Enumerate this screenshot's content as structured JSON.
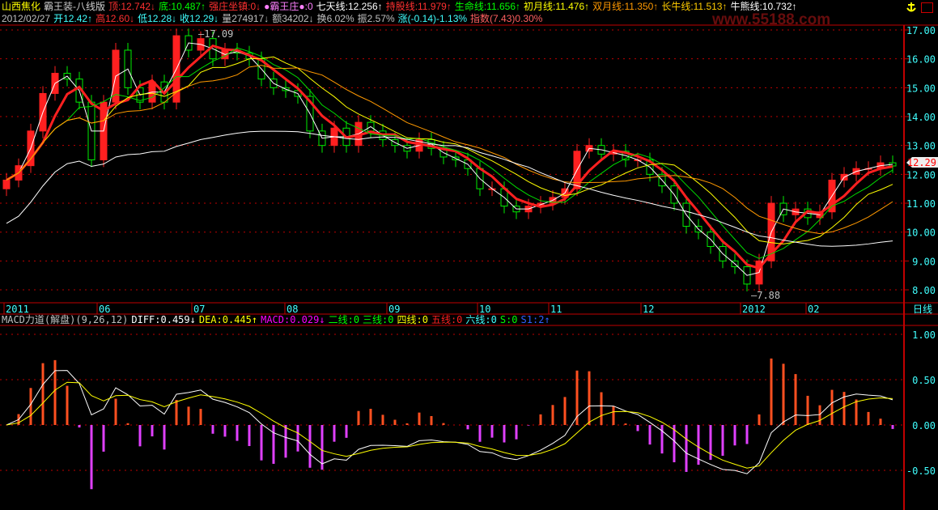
{
  "header": {
    "line1": [
      {
        "t": "山西焦化",
        "c": "#ffff00"
      },
      {
        "t": "霸王装-八线版",
        "c": "#d0d0d0"
      },
      {
        "t": "顶:12.742↓",
        "c": "#ff3030"
      },
      {
        "t": "底:10.487↑",
        "c": "#00ff00"
      },
      {
        "t": "强庄坐镇:0↓",
        "c": "#ff3030"
      },
      {
        "t": "●霸王庄●:0",
        "c": "#ff80ff"
      },
      {
        "t": "七天线:12.256↑",
        "c": "#ffffff"
      },
      {
        "t": "持股线:11.979↑",
        "c": "#ff3030"
      },
      {
        "t": "生命线:11.656↑",
        "c": "#00ff00"
      },
      {
        "t": "初月线:11.476↑",
        "c": "#ffff00"
      },
      {
        "t": "双月线:11.350↑",
        "c": "#ff9900"
      },
      {
        "t": "长牛线:11.513↑",
        "c": "#ffcc00"
      },
      {
        "t": "牛熊线:10.732↑",
        "c": "#ffffff"
      }
    ],
    "line2": [
      {
        "t": "2012/02/27",
        "c": "#c0c0c0"
      },
      {
        "t": "开12.42↑",
        "c": "#40ffff"
      },
      {
        "t": "高12.60↓",
        "c": "#ff3030"
      },
      {
        "t": "低12.28↓",
        "c": "#40ffff"
      },
      {
        "t": "收12.29↓",
        "c": "#40ffff"
      },
      {
        "t": "量274917↓",
        "c": "#c0c0c0"
      },
      {
        "t": "额34202↓",
        "c": "#c0c0c0"
      },
      {
        "t": "换6.02%",
        "c": "#c0c0c0"
      },
      {
        "t": "振2.57%",
        "c": "#c0c0c0"
      },
      {
        "t": "涨(-0.14)-1.13%",
        "c": "#40ffff"
      },
      {
        "t": "指数(7.43)0.30%",
        "c": "#ff6060"
      }
    ],
    "watermark": "www.55188.com"
  },
  "macd_header": [
    {
      "t": "MACD力道(解盘)(9,26,12)",
      "c": "#c0c0c0"
    },
    {
      "t": "DIFF:0.459↓",
      "c": "#ffffff"
    },
    {
      "t": "DEA:0.445↑",
      "c": "#ffff00"
    },
    {
      "t": "MACD:0.029↓",
      "c": "#ff00ff"
    },
    {
      "t": "二线:0",
      "c": "#00ff00"
    },
    {
      "t": "三线:0",
      "c": "#00ff00"
    },
    {
      "t": "四线:0",
      "c": "#ffff00"
    },
    {
      "t": "五线:0",
      "c": "#ff2020"
    },
    {
      "t": "六线:0",
      "c": "#40ffff"
    },
    {
      "t": "S:0",
      "c": "#00ff00"
    },
    {
      "t": "S1:2↑",
      "c": "#3060ff"
    }
  ],
  "chart_data": [
    {
      "type": "candlestick",
      "title": "山西焦化",
      "period_label": "日线",
      "x_ticks": [
        "2011",
        "06",
        "07",
        "08",
        "09",
        "10",
        "11",
        "12",
        "2012",
        "02"
      ],
      "y_ticks": [
        "17.00",
        "16.00",
        "15.00",
        "14.00",
        "13.00",
        "12.00",
        "11.00",
        "10.00",
        "9.00",
        "8.00"
      ],
      "ylim": [
        7.8,
        17.1
      ],
      "last_price": "12.29",
      "high_label": "17.09",
      "low_label": "7.88",
      "closes": [
        11.8,
        12.3,
        13.5,
        14.8,
        15.5,
        15.3,
        14.5,
        12.5,
        14.5,
        16.3,
        15.0,
        14.5,
        15.2,
        14.5,
        16.8,
        16.3,
        16.7,
        16.0,
        16.3,
        16.2,
        16.0,
        15.3,
        15.0,
        14.9,
        14.7,
        13.5,
        13.0,
        13.6,
        13.0,
        13.8,
        13.5,
        13.2,
        13.0,
        12.8,
        13.2,
        12.9,
        12.6,
        12.5,
        12.2,
        11.5,
        11.5,
        10.9,
        10.7,
        10.9,
        11.0,
        11.2,
        11.5,
        12.8,
        13.0,
        12.7,
        12.8,
        12.5,
        12.5,
        12.0,
        11.6,
        11.0,
        10.2,
        10.0,
        9.5,
        9.0,
        8.8,
        8.2,
        9.0,
        11.0,
        10.6,
        10.8,
        10.5,
        10.7,
        11.8,
        12.0,
        12.2,
        12.2,
        12.4,
        12.29
      ],
      "ma_colors": [
        "#ffffff",
        "#ff2020",
        "#00dd00",
        "#ffff00",
        "#ff9900",
        "#ffffff"
      ]
    },
    {
      "type": "macd",
      "y_ticks": [
        "1.00",
        "0.50",
        "0.00",
        "-0.50"
      ],
      "ylim": [
        -0.9,
        1.1
      ],
      "diff": 0.459,
      "dea": 0.445,
      "macd": 0.029
    }
  ]
}
